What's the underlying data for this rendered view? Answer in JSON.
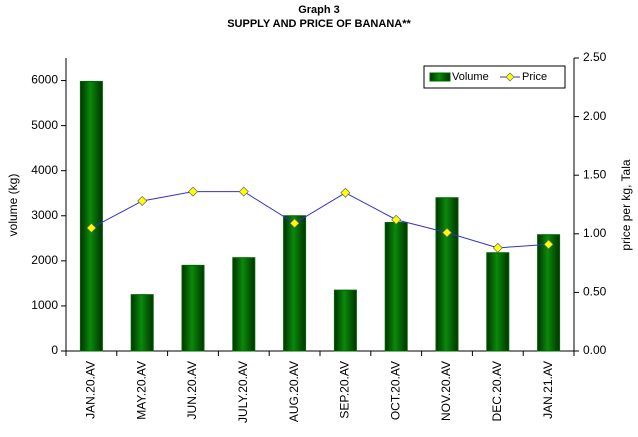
{
  "chart_data": {
    "type": "bar_line",
    "title": "Graph 3",
    "subtitle": "SUPPLY AND PRICE OF BANANA**",
    "y_label": "volume (kg)",
    "y2_label": "price per kg, Tala",
    "categories": [
      "JAN.20.AV",
      "MAY.20.AV",
      "JUN.20.AV",
      "JULY.20.AV",
      "AUG.20.AV",
      "SEP.20.AV",
      "OCT.20.AV",
      "NOV.20.AV",
      "DEC.20.AV",
      "JAN.21.AV"
    ],
    "series": [
      {
        "name": "Volume",
        "color": "#006400",
        "values": [
          5980,
          1250,
          1900,
          2070,
          3000,
          1350,
          2850,
          3400,
          2180,
          2580
        ]
      },
      {
        "name": "Price",
        "color": "#3333cc",
        "marker_color": "#ffff00",
        "axis": "y2",
        "values": [
          1.05,
          1.28,
          1.36,
          1.36,
          1.09,
          1.35,
          1.12,
          1.01,
          0.88,
          0.91
        ]
      }
    ],
    "ylim": [
      0,
      6500
    ],
    "yticks": [
      0,
      1000,
      2000,
      3000,
      4000,
      5000,
      6000
    ],
    "y2lim": [
      0,
      2.5
    ],
    "y2ticks": [
      {
        "value": 0,
        "label": "0.00"
      },
      {
        "value": 0.5,
        "label": "0.50"
      },
      {
        "value": 1,
        "label": "1.00"
      },
      {
        "value": 1.5,
        "label": "1.50"
      },
      {
        "value": 2,
        "label": "2.00"
      },
      {
        "value": 2.5,
        "label": "2.50"
      }
    ],
    "legend": "top-right"
  }
}
